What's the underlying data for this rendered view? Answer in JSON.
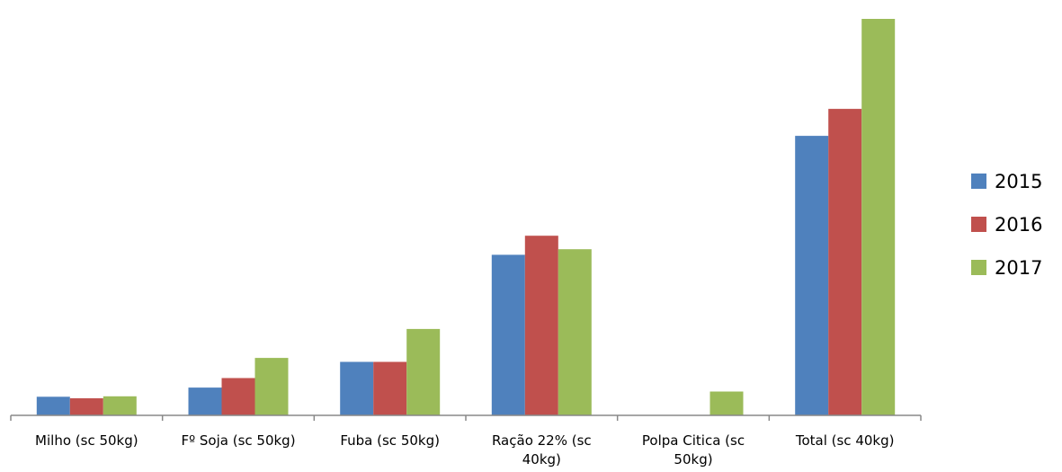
{
  "chart_data": {
    "type": "bar",
    "title": "",
    "xlabel": "",
    "ylabel": "",
    "categories": [
      [
        "Milho (sc 50kg)"
      ],
      [
        "Fº Soja (sc 50kg)"
      ],
      [
        "Fuba (sc 50kg)"
      ],
      [
        "Ração 22% (sc",
        "40kg)"
      ],
      [
        "Polpa Citica (sc",
        "50kg)"
      ],
      [
        "Total (sc 40kg)"
      ]
    ],
    "series": [
      {
        "name": "2015",
        "color": "#4F81BD",
        "values": [
          4.7,
          7.0,
          13.5,
          40.5,
          0,
          70.5
        ]
      },
      {
        "name": "2016",
        "color": "#C0504D",
        "values": [
          4.3,
          9.4,
          13.5,
          45.3,
          0,
          77.3
        ]
      },
      {
        "name": "2017",
        "color": "#9BBB59",
        "values": [
          4.8,
          14.5,
          21.8,
          41.9,
          6.0,
          100.0
        ]
      }
    ],
    "ylim": [
      0,
      100
    ],
    "grid": false,
    "legend_position": "right"
  }
}
